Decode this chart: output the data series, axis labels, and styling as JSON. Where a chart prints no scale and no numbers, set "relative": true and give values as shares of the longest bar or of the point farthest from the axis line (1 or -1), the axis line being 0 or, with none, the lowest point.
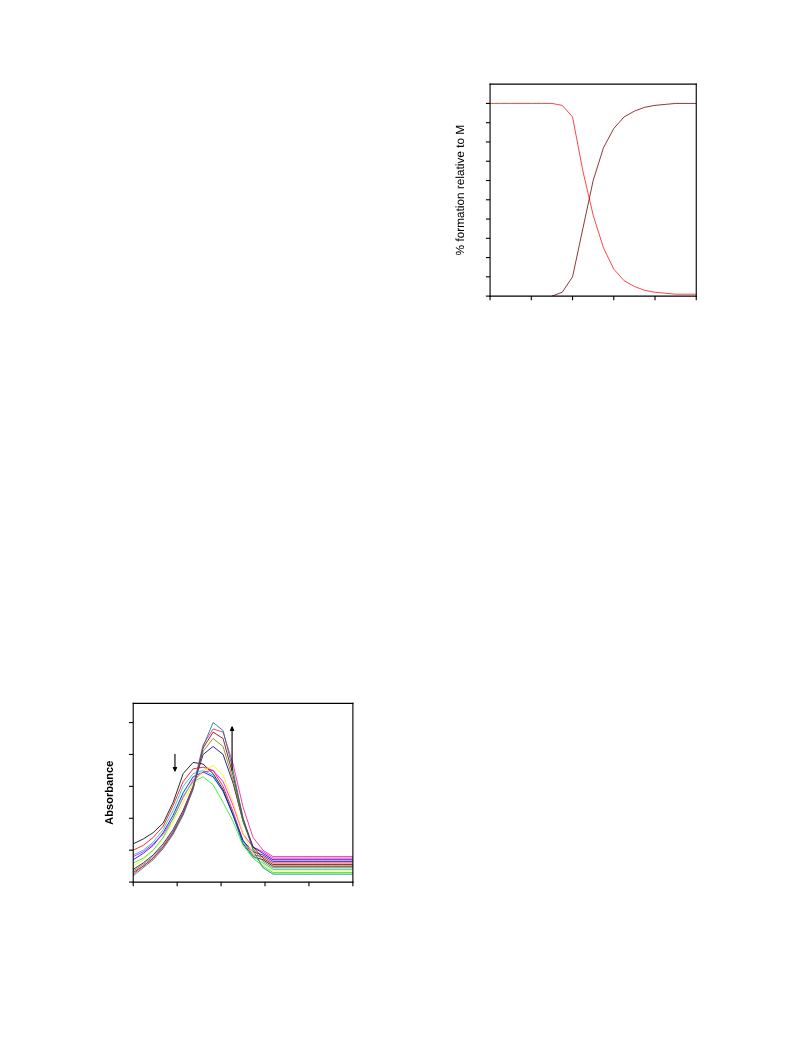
{
  "chart_data": [
    {
      "type": "line",
      "ylabel": "% formation relative to M",
      "relative": true,
      "tick_labels": false,
      "grid": false,
      "legend": false,
      "marker": "none",
      "line_style": "solid",
      "categories": [
        null,
        null,
        null,
        null,
        null,
        null,
        null,
        null,
        null,
        null,
        null,
        null,
        null,
        null,
        null,
        null,
        null,
        null,
        null,
        null,
        null
      ],
      "series": [
        {
          "color": "#ff2020",
          "values": [
            1.0,
            1.0,
            1.0,
            1.0,
            1.0,
            1.0,
            1.0,
            0.99,
            0.93,
            0.65,
            0.42,
            0.25,
            0.14,
            0.08,
            0.05,
            0.03,
            0.02,
            0.015,
            0.01,
            0.01,
            0.01
          ]
        },
        {
          "color": "#7a1010",
          "values": [
            null,
            null,
            null,
            null,
            null,
            null,
            0.0,
            0.02,
            0.1,
            0.35,
            0.6,
            0.77,
            0.87,
            0.93,
            0.96,
            0.98,
            0.99,
            0.995,
            1.0,
            1.0,
            1.0
          ]
        }
      ]
    },
    {
      "type": "line",
      "ylabel": "Absorbance",
      "relative": true,
      "tick_labels": false,
      "grid": false,
      "legend": false,
      "marker": "none",
      "line_style": "solid",
      "categories": [
        null,
        null,
        null,
        null,
        null,
        null,
        null,
        null,
        null,
        null,
        null,
        null,
        null,
        null,
        null,
        null,
        null,
        null,
        null,
        null,
        null,
        null,
        null
      ],
      "series": [
        {
          "color": "#000000",
          "values": [
            0.24,
            0.27,
            0.31,
            0.37,
            0.5,
            0.68,
            0.75,
            0.74,
            0.68,
            0.58,
            0.42,
            0.24,
            0.16,
            0.14,
            0.1,
            0.1,
            0.1,
            0.1,
            0.1,
            0.1,
            0.1,
            0.1,
            0.1
          ]
        },
        {
          "color": "#ff0000",
          "values": [
            0.2,
            0.23,
            0.28,
            0.35,
            0.48,
            0.63,
            0.71,
            0.72,
            0.7,
            0.6,
            0.44,
            0.26,
            0.17,
            0.16,
            0.12,
            0.12,
            0.12,
            0.12,
            0.12,
            0.12,
            0.12,
            0.12,
            0.12
          ]
        },
        {
          "color": "#00c8e0",
          "values": [
            0.17,
            0.2,
            0.25,
            0.33,
            0.45,
            0.6,
            0.68,
            0.7,
            0.67,
            0.57,
            0.42,
            0.25,
            0.16,
            0.12,
            0.08,
            0.08,
            0.08,
            0.08,
            0.08,
            0.08,
            0.08,
            0.08,
            0.08
          ]
        },
        {
          "color": "#0000ff",
          "values": [
            0.14,
            0.18,
            0.23,
            0.31,
            0.42,
            0.56,
            0.66,
            0.69,
            0.66,
            0.57,
            0.42,
            0.26,
            0.19,
            0.17,
            0.13,
            0.13,
            0.13,
            0.13,
            0.13,
            0.13,
            0.13,
            0.13,
            0.13
          ]
        },
        {
          "color": "#ff00ff",
          "values": [
            0.16,
            0.19,
            0.24,
            0.3,
            0.4,
            0.53,
            0.64,
            0.69,
            0.7,
            0.63,
            0.48,
            0.3,
            0.22,
            0.19,
            0.15,
            0.15,
            0.15,
            0.15,
            0.15,
            0.15,
            0.15,
            0.15,
            0.15
          ]
        },
        {
          "color": "#ffee00",
          "values": [
            0.1,
            0.14,
            0.2,
            0.28,
            0.38,
            0.5,
            0.62,
            0.7,
            0.73,
            0.67,
            0.5,
            0.3,
            0.18,
            0.11,
            0.07,
            0.07,
            0.07,
            0.07,
            0.07,
            0.07,
            0.07,
            0.07,
            0.07
          ]
        },
        {
          "color": "#22ee22",
          "values": [
            0.12,
            0.15,
            0.2,
            0.28,
            0.4,
            0.54,
            0.63,
            0.66,
            0.61,
            0.5,
            0.38,
            0.23,
            0.15,
            0.1,
            0.06,
            0.06,
            0.06,
            0.06,
            0.06,
            0.06,
            0.06,
            0.06,
            0.06
          ]
        },
        {
          "color": "#000080",
          "values": [
            0.08,
            0.12,
            0.17,
            0.24,
            0.33,
            0.45,
            0.6,
            0.8,
            0.85,
            0.8,
            0.62,
            0.38,
            0.22,
            0.18,
            0.14,
            0.14,
            0.14,
            0.14,
            0.14,
            0.14,
            0.14,
            0.14,
            0.14
          ]
        },
        {
          "color": "#808000",
          "values": [
            0.07,
            0.11,
            0.16,
            0.23,
            0.32,
            0.44,
            0.6,
            0.82,
            0.9,
            0.85,
            0.64,
            0.38,
            0.21,
            0.13,
            0.09,
            0.09,
            0.09,
            0.09,
            0.09,
            0.09,
            0.09,
            0.09,
            0.09
          ]
        },
        {
          "color": "#800000",
          "values": [
            0.06,
            0.1,
            0.15,
            0.22,
            0.31,
            0.43,
            0.59,
            0.84,
            0.94,
            0.9,
            0.67,
            0.4,
            0.22,
            0.15,
            0.11,
            0.11,
            0.11,
            0.11,
            0.11,
            0.11,
            0.11,
            0.11,
            0.11
          ]
        },
        {
          "color": "#ff1493",
          "values": [
            0.05,
            0.1,
            0.15,
            0.22,
            0.31,
            0.43,
            0.6,
            0.86,
            0.96,
            0.94,
            0.74,
            0.47,
            0.28,
            0.2,
            0.16,
            0.16,
            0.16,
            0.16,
            0.16,
            0.16,
            0.16,
            0.16,
            0.16
          ]
        },
        {
          "color": "#008080",
          "values": [
            0.04,
            0.09,
            0.14,
            0.21,
            0.3,
            0.42,
            0.58,
            0.85,
            1.0,
            0.95,
            0.7,
            0.4,
            0.2,
            0.09,
            0.05,
            0.05,
            0.05,
            0.05,
            0.05,
            0.05,
            0.05,
            0.05,
            0.05
          ]
        }
      ]
    }
  ]
}
